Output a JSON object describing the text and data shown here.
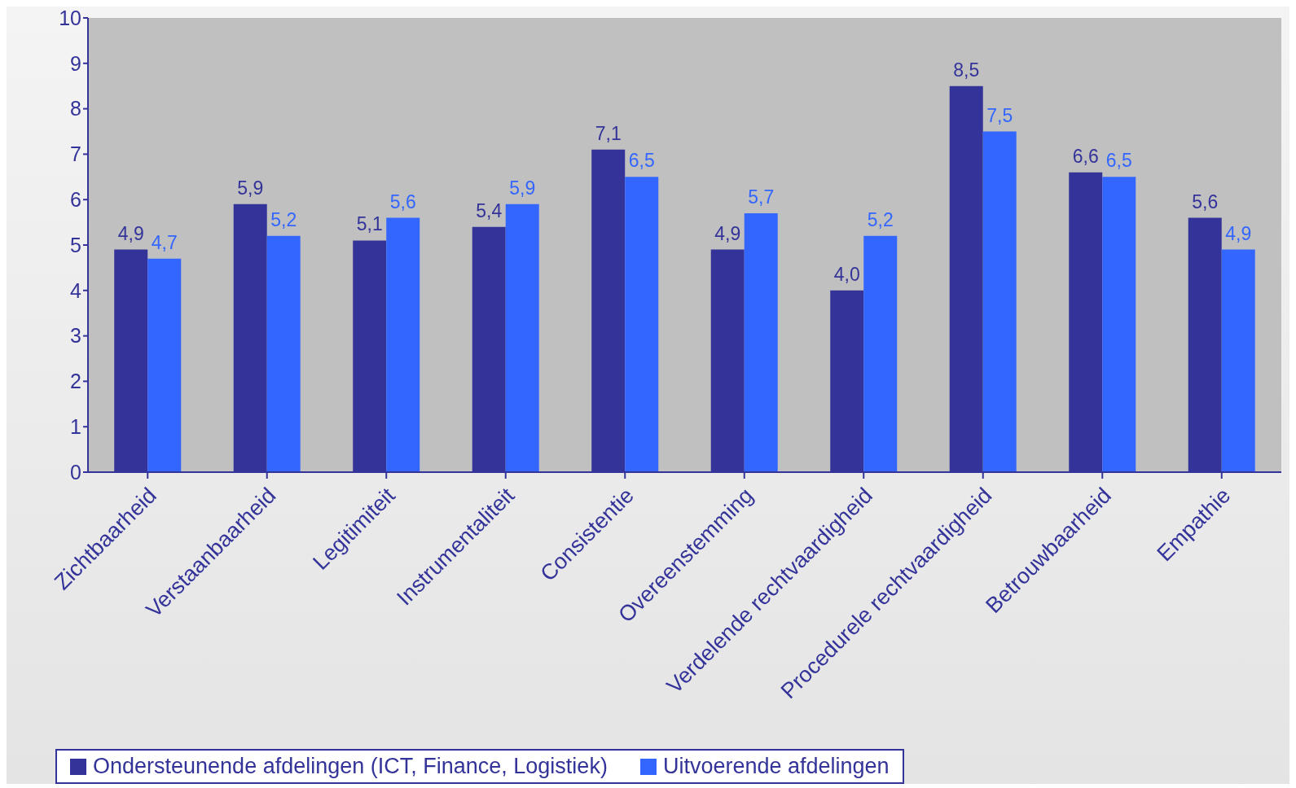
{
  "chart_data": {
    "type": "bar",
    "categories": [
      "Zichtbaarheid",
      "Verstaanbaarheid",
      "Legitimiteit",
      "Instrumentaliteit",
      "Consistentie",
      "Overeenstemming",
      "Verdelende rechtvaardigheid",
      "Procedurele rechtvaardigheid",
      "Betrouwbaarheid",
      "Empathie"
    ],
    "series": [
      {
        "name": "Ondersteunende afdelingen (ICT, Finance, Logistiek)",
        "color": "#333399",
        "values": [
          4.9,
          5.9,
          5.1,
          5.4,
          7.1,
          4.9,
          4.0,
          8.5,
          6.6,
          5.6
        ],
        "value_labels": [
          "4,9",
          "5,9",
          "5,1",
          "5,4",
          "7,1",
          "4,9",
          "4,0",
          "8,5",
          "6,6",
          "5,6"
        ]
      },
      {
        "name": "Uitvoerende afdelingen",
        "color": "#3366ff",
        "values": [
          4.7,
          5.2,
          5.6,
          5.9,
          6.5,
          5.7,
          5.2,
          7.5,
          6.5,
          4.9
        ],
        "value_labels": [
          "4,7",
          "5,2",
          "5,6",
          "5,9",
          "6,5",
          "5,7",
          "5,2",
          "7,5",
          "6,5",
          "4,9"
        ]
      }
    ],
    "ylim": [
      0,
      10
    ],
    "yticks": [
      0,
      1,
      2,
      3,
      4,
      5,
      6,
      7,
      8,
      9,
      10
    ],
    "grid": false,
    "legend": "bottom"
  }
}
